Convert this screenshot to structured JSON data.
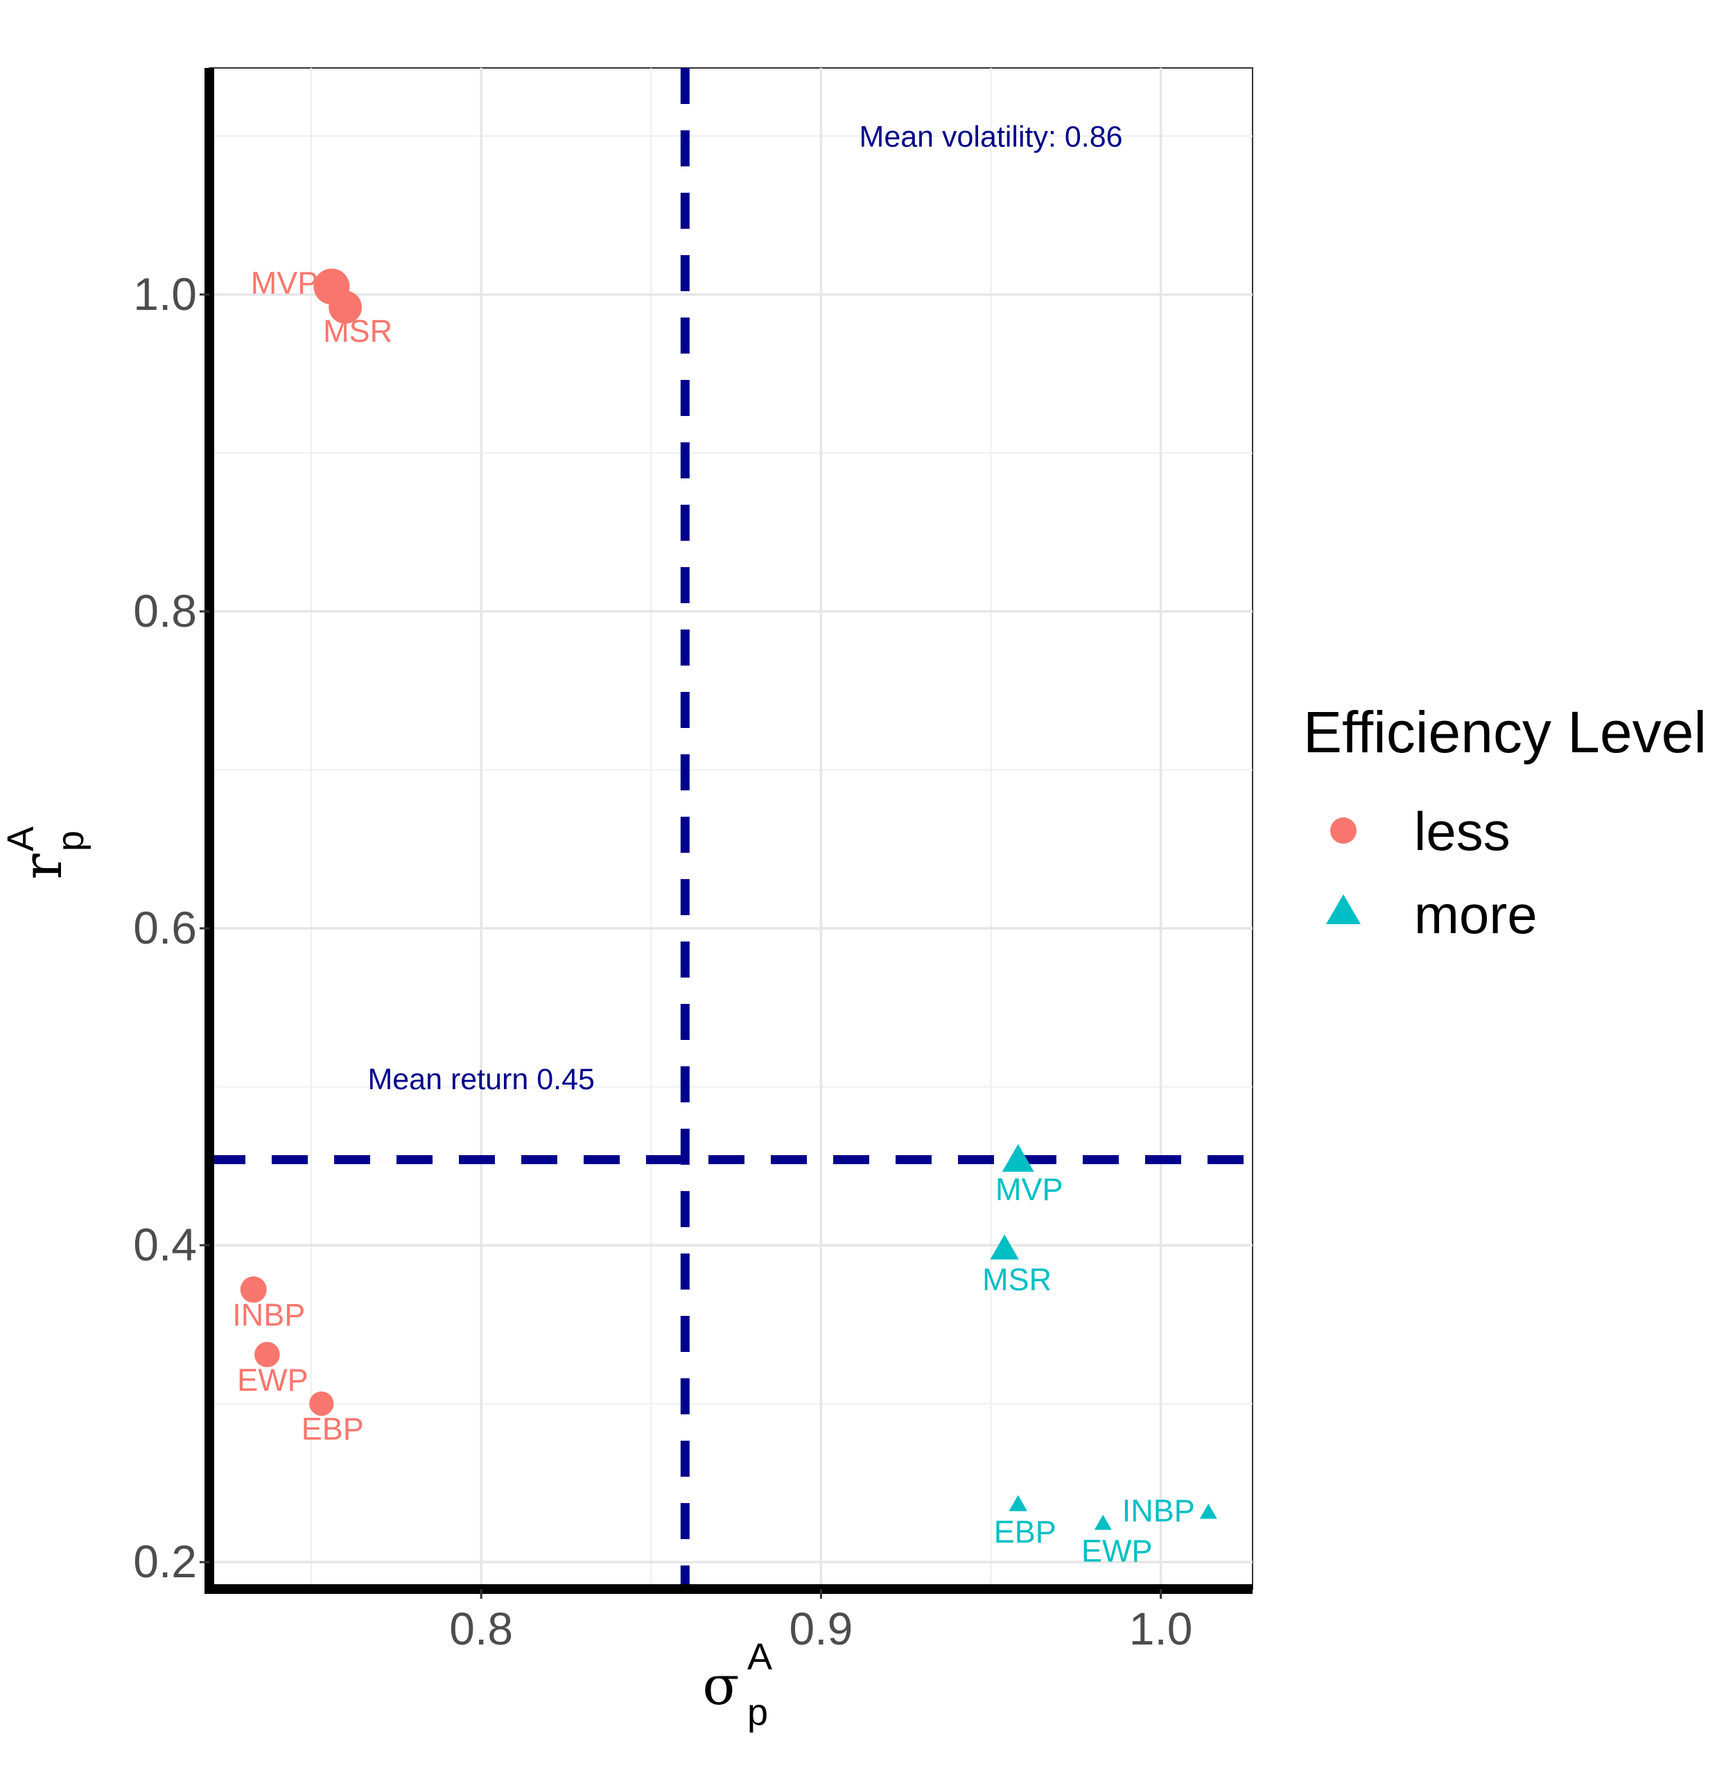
{
  "chart_data": {
    "type": "scatter",
    "x_axis_label": "σ",
    "x_axis_superscript": "A",
    "x_axis_subscript": "p",
    "y_axis_label": "r",
    "y_axis_superscript": "A",
    "y_axis_subscript": "p",
    "xlim": [
      0.72,
      1.027
    ],
    "ylim": [
      0.183,
      1.143
    ],
    "x_ticks": [
      0.8,
      0.9,
      1.0
    ],
    "x_tick_labels": [
      "0.8",
      "0.9",
      "1.0"
    ],
    "y_ticks": [
      0.2,
      0.4,
      0.6,
      0.8,
      1.0
    ],
    "y_tick_labels": [
      "0.2",
      "0.4",
      "0.6",
      "0.8",
      "1.0"
    ],
    "grid": true,
    "legend": {
      "title": "Efficiency Level",
      "position": "right",
      "entries": [
        {
          "label": "less",
          "shape": "circle",
          "color": "#F8766D"
        },
        {
          "label": "more",
          "shape": "triangle",
          "color": "#00BFC4"
        }
      ]
    },
    "series": [
      {
        "name": "less",
        "shape": "circle",
        "color": "#F8766D",
        "points": [
          {
            "label": "MVP",
            "x": 0.756,
            "y": 1.005,
            "size": 1.0
          },
          {
            "label": "MSR",
            "x": 0.76,
            "y": 0.992,
            "size": 0.85
          },
          {
            "label": "INBP",
            "x": 0.733,
            "y": 0.372,
            "size": 0.5
          },
          {
            "label": "EWP",
            "x": 0.737,
            "y": 0.331,
            "size": 0.45
          },
          {
            "label": "EBP",
            "x": 0.753,
            "y": 0.3,
            "size": 0.4
          }
        ]
      },
      {
        "name": "more",
        "shape": "triangle",
        "color": "#00BFC4",
        "points": [
          {
            "label": "MVP",
            "x": 0.958,
            "y": 0.453,
            "size": 1.0
          },
          {
            "label": "MSR",
            "x": 0.954,
            "y": 0.397,
            "size": 0.85
          },
          {
            "label": "EBP",
            "x": 0.958,
            "y": 0.236,
            "size": 0.35
          },
          {
            "label": "EWP",
            "x": 0.983,
            "y": 0.224,
            "size": 0.3
          },
          {
            "label": "INBP",
            "x": 1.014,
            "y": 0.231,
            "size": 0.3
          }
        ]
      }
    ],
    "reference_lines": [
      {
        "orientation": "vertical",
        "value": 0.86,
        "style": "dashed",
        "color": "#00008B"
      },
      {
        "orientation": "horizontal",
        "value": 0.454,
        "style": "dashed",
        "color": "#00008B"
      }
    ],
    "annotations": [
      {
        "text": "Mean volatility: 0.86",
        "x": 0.95,
        "y": 1.1
      },
      {
        "text": "Mean return 0.45",
        "x": 0.8,
        "y": 0.505
      }
    ]
  }
}
